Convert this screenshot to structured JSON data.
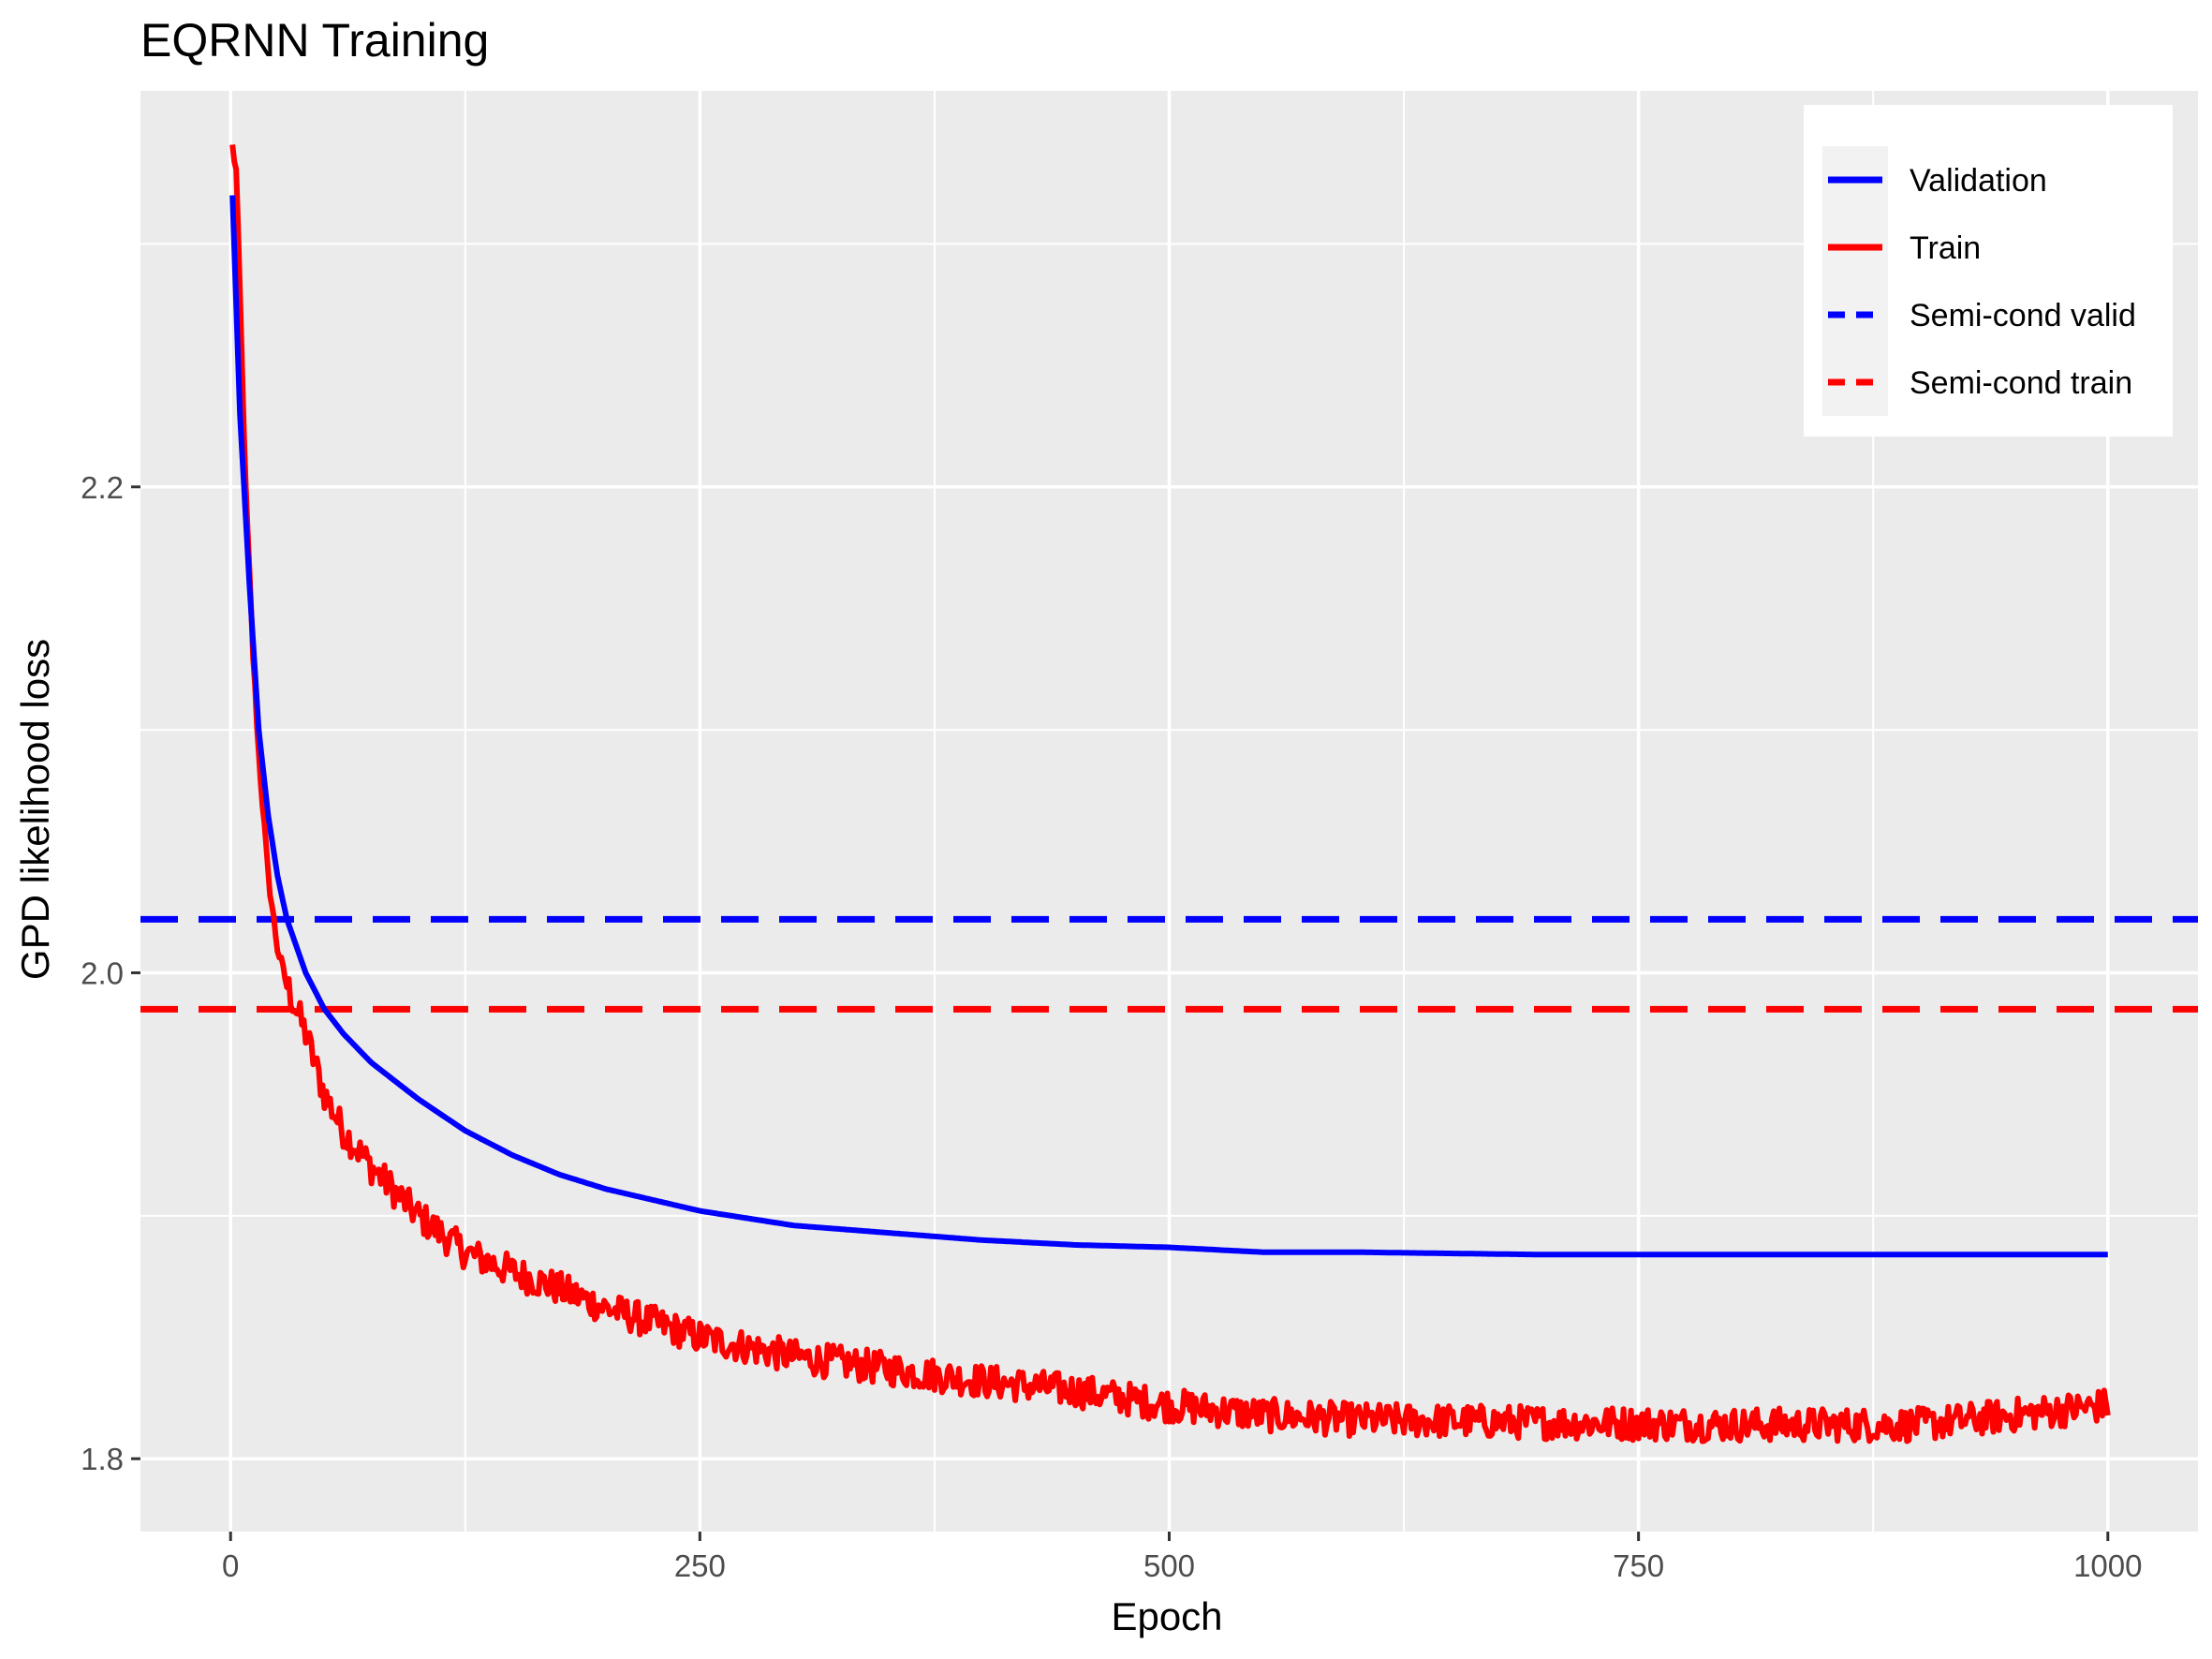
{
  "chart_data": {
    "type": "line",
    "title": "EQRNN Training",
    "xlabel": "Epoch",
    "ylabel": "GPD likelihood loss",
    "xlim": [
      -48,
      1048
    ],
    "ylim": [
      1.77,
      2.363
    ],
    "x_ticks": [
      0,
      250,
      500,
      750,
      1000
    ],
    "x_tick_labels": [
      "0",
      "250",
      "500",
      "750",
      "1000"
    ],
    "y_ticks": [
      1.8,
      2.0,
      2.2
    ],
    "y_tick_labels": [
      "1.8",
      "2.0",
      "2.2"
    ],
    "grid": true,
    "background": "#ebebeb",
    "legend_position": "top-right",
    "series": [
      {
        "name": "Validation",
        "style": "solid",
        "color": "#0000ff",
        "anchors": [
          [
            1,
            2.32
          ],
          [
            5,
            2.23
          ],
          [
            10,
            2.16
          ],
          [
            15,
            2.1
          ],
          [
            20,
            2.065
          ],
          [
            25,
            2.04
          ],
          [
            30,
            2.022
          ],
          [
            40,
            2.0
          ],
          [
            50,
            1.985
          ],
          [
            60,
            1.975
          ],
          [
            75,
            1.963
          ],
          [
            100,
            1.948
          ],
          [
            125,
            1.935
          ],
          [
            150,
            1.925
          ],
          [
            175,
            1.917
          ],
          [
            200,
            1.911
          ],
          [
            250,
            1.902
          ],
          [
            300,
            1.896
          ],
          [
            350,
            1.893
          ],
          [
            400,
            1.89
          ],
          [
            450,
            1.888
          ],
          [
            500,
            1.887
          ],
          [
            550,
            1.885
          ],
          [
            600,
            1.885
          ],
          [
            700,
            1.884
          ],
          [
            800,
            1.884
          ],
          [
            900,
            1.884
          ],
          [
            1000,
            1.884
          ]
        ]
      },
      {
        "name": "Train",
        "style": "solid",
        "color": "#ff0000",
        "anchors": [
          [
            1,
            2.34
          ],
          [
            3,
            2.33
          ],
          [
            5,
            2.28
          ],
          [
            8,
            2.2
          ],
          [
            12,
            2.13
          ],
          [
            15,
            2.09
          ],
          [
            20,
            2.04
          ],
          [
            25,
            2.01
          ],
          [
            30,
            1.995
          ],
          [
            40,
            1.975
          ],
          [
            50,
            1.95
          ],
          [
            60,
            1.935
          ],
          [
            75,
            1.92
          ],
          [
            100,
            1.9
          ],
          [
            125,
            1.885
          ],
          [
            150,
            1.877
          ],
          [
            175,
            1.87
          ],
          [
            200,
            1.862
          ],
          [
            250,
            1.85
          ],
          [
            300,
            1.842
          ],
          [
            350,
            1.837
          ],
          [
            400,
            1.832
          ],
          [
            450,
            1.828
          ],
          [
            500,
            1.822
          ],
          [
            550,
            1.818
          ],
          [
            600,
            1.816
          ],
          [
            700,
            1.815
          ],
          [
            800,
            1.814
          ],
          [
            900,
            1.814
          ],
          [
            1000,
            1.822
          ]
        ],
        "noise_amplitude": 0.007
      },
      {
        "name": "Semi-cond valid",
        "style": "dashed",
        "color": "#0000ff",
        "y": 2.022
      },
      {
        "name": "Semi-cond train",
        "style": "dashed",
        "color": "#ff0000",
        "y": 1.985
      }
    ]
  }
}
